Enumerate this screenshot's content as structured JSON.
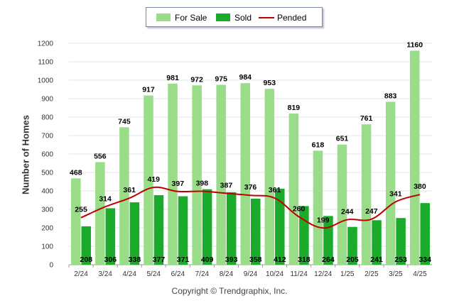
{
  "legend": {
    "for_sale": "For Sale",
    "sold": "Sold",
    "pended": "Pended"
  },
  "copyright": "Copyright © Trendgraphix, Inc.",
  "colors": {
    "for_sale": "#99dd88",
    "sold": "#1aab2a",
    "pended": "#c00000",
    "grid": "#e6e6e6"
  },
  "chart_data": {
    "type": "bar",
    "title": "",
    "xlabel": "",
    "ylabel": "Number of Homes",
    "ylim": [
      0,
      1200
    ],
    "yticks": [
      0,
      100,
      200,
      300,
      400,
      500,
      600,
      700,
      800,
      900,
      1000,
      1100,
      1200
    ],
    "grid": true,
    "legend_position": "top-center",
    "categories": [
      "2/24",
      "3/24",
      "4/24",
      "5/24",
      "6/24",
      "7/24",
      "8/24",
      "9/24",
      "10/24",
      "11/24",
      "12/24",
      "1/25",
      "2/25",
      "3/25",
      "4/25"
    ],
    "series": [
      {
        "name": "For Sale",
        "type": "bar",
        "values": [
          468,
          556,
          745,
          917,
          981,
          972,
          975,
          984,
          953,
          819,
          618,
          651,
          761,
          883,
          1160
        ]
      },
      {
        "name": "Sold",
        "type": "bar",
        "values": [
          208,
          306,
          338,
          377,
          371,
          409,
          393,
          358,
          412,
          318,
          264,
          205,
          241,
          253,
          334
        ]
      },
      {
        "name": "Pended",
        "type": "line",
        "values": [
          255,
          314,
          361,
          419,
          397,
          398,
          387,
          376,
          361,
          260,
          199,
          244,
          247,
          341,
          380
        ]
      }
    ]
  }
}
